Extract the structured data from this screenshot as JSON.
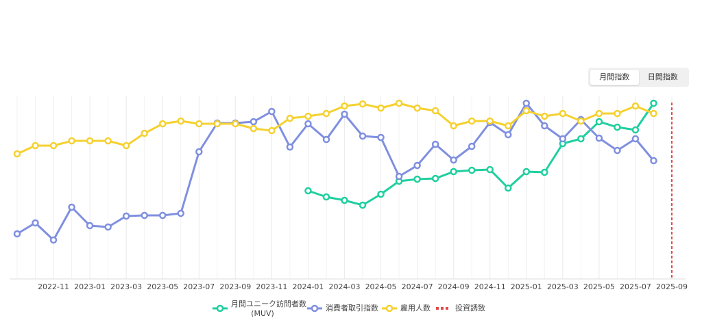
{
  "controls": {
    "options": [
      "月間指数",
      "日間指数"
    ],
    "active": 0
  },
  "chart_data": {
    "type": "line",
    "x": [
      "2022-09",
      "2022-10",
      "2022-11",
      "2022-12",
      "2023-01",
      "2023-02",
      "2023-03",
      "2023-04",
      "2023-05",
      "2023-06",
      "2023-07",
      "2023-08",
      "2023-09",
      "2023-10",
      "2023-11",
      "2023-12",
      "2024-01",
      "2024-02",
      "2024-03",
      "2024-04",
      "2024-05",
      "2024-06",
      "2024-07",
      "2024-08",
      "2024-09",
      "2024-10",
      "2024-11",
      "2024-12",
      "2025-01",
      "2025-02",
      "2025-03",
      "2025-04",
      "2025-05",
      "2025-06",
      "2025-07",
      "2025-08"
    ],
    "xlim": [
      "2022-09",
      "2025-09"
    ],
    "xticks": [
      "2022-11",
      "2023-01",
      "2023-03",
      "2023-05",
      "2023-07",
      "2023-09",
      "2023-11",
      "2024-01",
      "2024-03",
      "2024-05",
      "2024-07",
      "2024-09",
      "2024-11",
      "2025-01",
      "2025-03",
      "2025-05",
      "2025-07",
      "2025-09"
    ],
    "ylim": [
      0,
      260
    ],
    "series": [
      {
        "name": "月間ユニーク訪問者数",
        "subname": "(MUV)",
        "color": "#1fcf9f",
        "values": [
          null,
          null,
          null,
          null,
          null,
          null,
          null,
          null,
          null,
          null,
          null,
          null,
          null,
          null,
          null,
          null,
          129,
          120,
          115,
          108,
          124,
          143,
          146,
          147,
          157,
          159,
          160,
          133,
          157,
          156,
          198,
          205,
          230,
          222,
          218,
          257
        ]
      },
      {
        "name": "消費者取引指数",
        "color": "#7f8fe0",
        "values": [
          66,
          82,
          57,
          105,
          78,
          76,
          92,
          93,
          93,
          96,
          186,
          228,
          228,
          230,
          245,
          193,
          227,
          204,
          241,
          209,
          207,
          150,
          166,
          197,
          174,
          194,
          229,
          211,
          257,
          224,
          205,
          233,
          206,
          188,
          205,
          173
        ]
      },
      {
        "name": "雇用人数",
        "color": "#f5d130",
        "values": [
          183,
          195,
          195,
          202,
          202,
          202,
          195,
          213,
          227,
          231,
          227,
          227,
          227,
          220,
          217,
          235,
          238,
          242,
          253,
          256,
          250,
          257,
          250,
          246,
          224,
          231,
          231,
          224,
          246,
          238,
          242,
          231,
          242,
          242,
          253,
          242
        ]
      }
    ],
    "events": [
      {
        "name": "投資誘致",
        "x": "2025-09",
        "color": "#e24b4b"
      }
    ]
  }
}
